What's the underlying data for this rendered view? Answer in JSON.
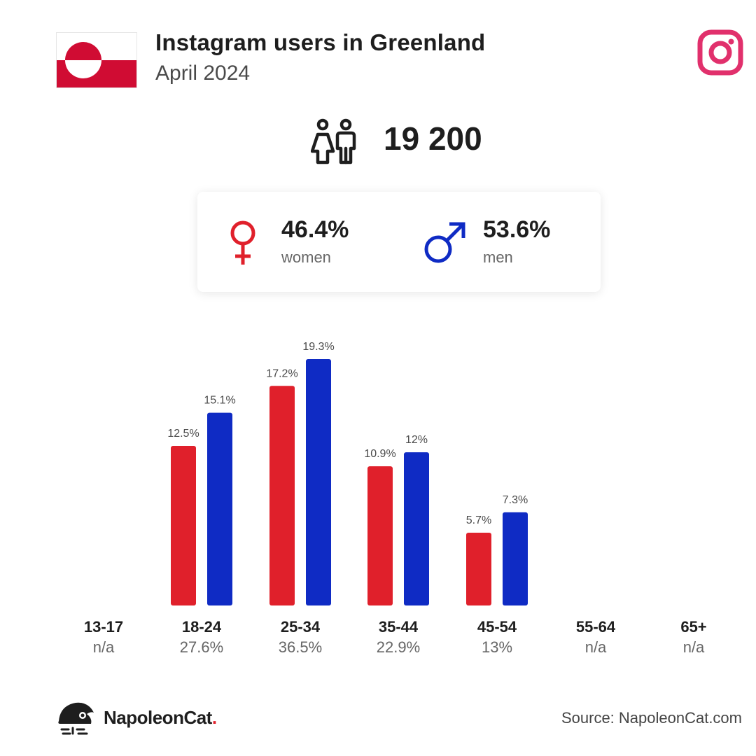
{
  "header": {
    "title": "Instagram users in Greenland",
    "subtitle": "April 2024"
  },
  "summary": {
    "total_users": "19 200",
    "women_pct": "46.4%",
    "women_label": "women",
    "men_pct": "53.6%",
    "men_label": "men"
  },
  "colors": {
    "women": "#e0202b",
    "men": "#0f2bc4",
    "instagram": "#e1306c",
    "flag_red": "#d00c33"
  },
  "icons": [
    "greenland-flag-icon",
    "instagram-icon",
    "users-icon",
    "female-icon",
    "male-icon",
    "napoleoncat-logo-icon"
  ],
  "chart_data": {
    "type": "bar",
    "categories": [
      "13-17",
      "18-24",
      "25-34",
      "35-44",
      "45-54",
      "55-64",
      "65+"
    ],
    "category_totals": [
      "n/a",
      "27.6%",
      "36.5%",
      "22.9%",
      "13%",
      "n/a",
      "n/a"
    ],
    "series": [
      {
        "name": "women",
        "values": [
          null,
          12.5,
          17.2,
          10.9,
          5.7,
          null,
          null
        ],
        "labels": [
          "",
          "12.5%",
          "17.2%",
          "10.9%",
          "5.7%",
          "",
          ""
        ]
      },
      {
        "name": "men",
        "values": [
          null,
          15.1,
          19.3,
          12,
          7.3,
          null,
          null
        ],
        "labels": [
          "",
          "15.1%",
          "19.3%",
          "12%",
          "7.3%",
          "",
          ""
        ]
      }
    ],
    "ylim": [
      0,
      20
    ],
    "grid": false,
    "title": "",
    "xlabel": "",
    "ylabel": ""
  },
  "footer": {
    "brand_name": "NapoleonCat",
    "brand_dot": ".",
    "source": "Source: NapoleonCat.com"
  }
}
